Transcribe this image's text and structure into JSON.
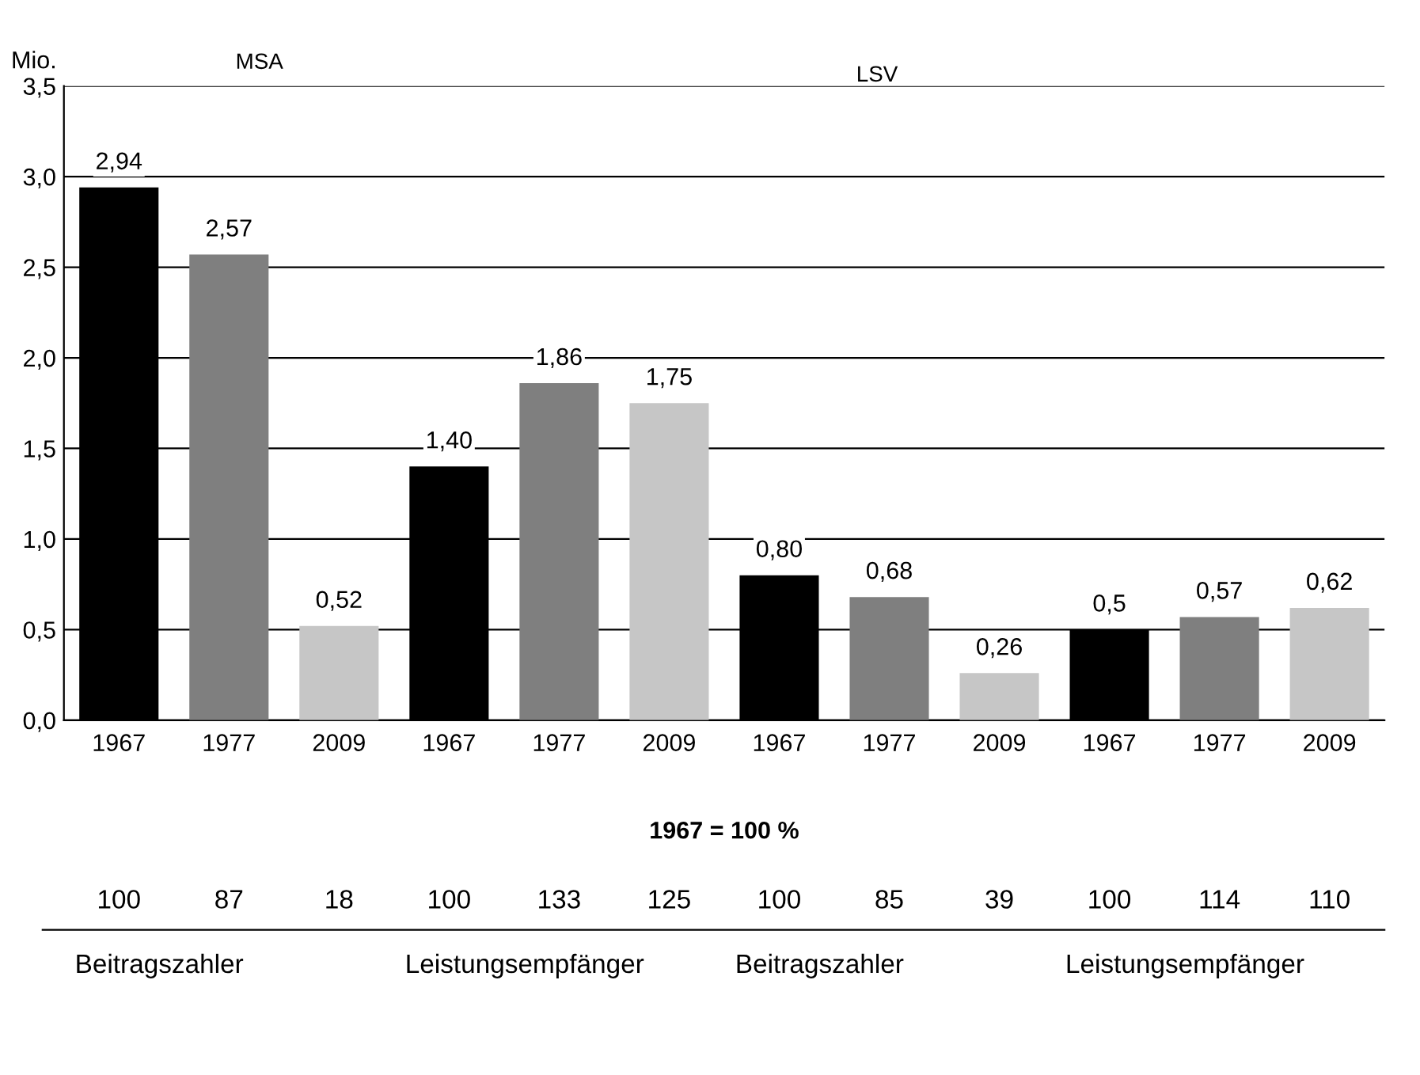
{
  "chart_data": {
    "type": "bar",
    "ylabel": "Mio.",
    "categories": [
      "1967",
      "1977",
      "2009",
      "1967",
      "1977",
      "2009",
      "1967",
      "1977",
      "2009",
      "1967",
      "1977",
      "2009"
    ],
    "values": [
      2.94,
      2.57,
      0.52,
      1.4,
      1.86,
      1.75,
      0.8,
      0.68,
      0.26,
      0.5,
      0.57,
      0.62
    ],
    "value_labels": [
      "2,94",
      "2,57",
      "0,52",
      "1,40",
      "1,86",
      "1,75",
      "0,80",
      "0,68",
      "0,26",
      "0,5",
      "0,57",
      "0,62"
    ],
    "colors": [
      "#000000",
      "#7f7f7f",
      "#c6c6c6",
      "#000000",
      "#7f7f7f",
      "#c6c6c6",
      "#000000",
      "#7f7f7f",
      "#c6c6c6",
      "#000000",
      "#7f7f7f",
      "#c6c6c6"
    ],
    "ylim": [
      0,
      3.5
    ],
    "yticks": [
      {
        "value": 0,
        "label": "0,0"
      },
      {
        "value": 0.5,
        "label": "0,5"
      },
      {
        "value": 1.0,
        "label": "1,0"
      },
      {
        "value": 1.5,
        "label": "1,5"
      },
      {
        "value": 2.0,
        "label": "2,0"
      },
      {
        "value": 2.5,
        "label": "2,5"
      },
      {
        "value": 3.0,
        "label": "3,0"
      },
      {
        "value": 3.5,
        "label": "3,5"
      }
    ],
    "grid": "y",
    "annotations": [
      "MSA",
      "LSV",
      "1967 = 100 %",
      "100",
      "87",
      "18",
      "100",
      "133",
      "125",
      "100",
      "85",
      "39",
      "100",
      "114",
      "110",
      "Beitragszahler",
      "Leistungsempfänger",
      "Beitragszahler",
      "Leistungsempfänger"
    ]
  }
}
